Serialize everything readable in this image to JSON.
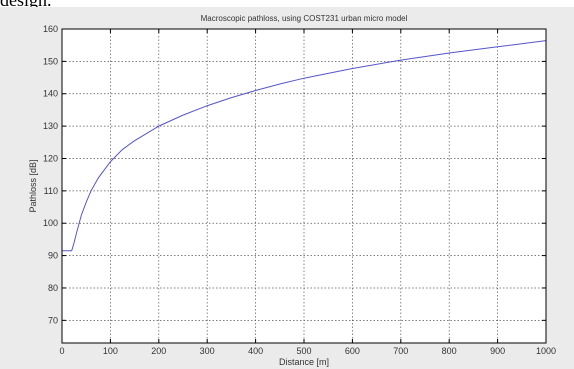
{
  "clipped_text": "design.",
  "colors": {
    "figure_background": "#ebebeb",
    "axes_background": "#ffffff",
    "grid": "#555555",
    "line": "#5555cc"
  },
  "chart_data": {
    "type": "line",
    "title": "Macroscopic pathloss, using COST231 urban micro model",
    "xlabel": "Distance [m]",
    "ylabel": "Pathloss [dB]",
    "xlim": [
      0,
      1000
    ],
    "ylim": [
      63,
      160
    ],
    "x_ticks": [
      0,
      100,
      200,
      300,
      400,
      500,
      600,
      700,
      800,
      900,
      1000
    ],
    "y_ticks": [
      70,
      80,
      90,
      100,
      110,
      120,
      130,
      140,
      150,
      160
    ],
    "grid": true,
    "series": [
      {
        "x": [
          0,
          10,
          20,
          25,
          30,
          40,
          50,
          60,
          75,
          100,
          125,
          150,
          200,
          250,
          300,
          350,
          400,
          450,
          500,
          600,
          700,
          800,
          900,
          1000
        ],
        "values": [
          91.5,
          91.5,
          91.5,
          94.0,
          97.0,
          102.5,
          106.5,
          110.0,
          114.0,
          119.0,
          122.8,
          125.5,
          130.0,
          133.4,
          136.3,
          138.8,
          141.0,
          143.0,
          144.8,
          147.8,
          150.4,
          152.6,
          154.5,
          156.4
        ]
      }
    ]
  }
}
